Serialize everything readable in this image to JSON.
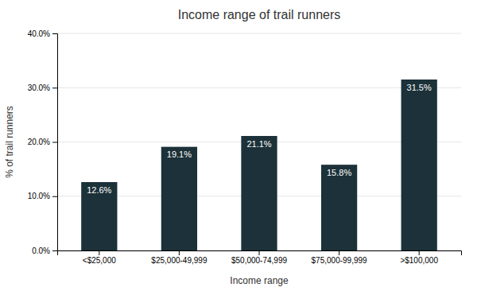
{
  "chart_data": {
    "type": "bar",
    "title": "Income range of trail runners",
    "xlabel": "Income range",
    "ylabel": "% of trail runners",
    "categories": [
      "<$25,000",
      "$25,000-49,999",
      "$50,000-74,999",
      "$75,000-99,999",
      ">$100,000"
    ],
    "values": [
      12.6,
      19.1,
      21.1,
      15.8,
      31.5
    ],
    "value_labels": [
      "12.6%",
      "19.1%",
      "21.1%",
      "15.8%",
      "31.5%"
    ],
    "data_labels": true,
    "color": "#1c3139",
    "ylim": [
      0,
      40
    ],
    "yticks": [
      {
        "value": 0,
        "label": "0.0%"
      },
      {
        "value": 10,
        "label": "10.0%"
      },
      {
        "value": 20,
        "label": "20.0%"
      },
      {
        "value": 30,
        "label": "30.0%"
      },
      {
        "value": 40,
        "label": "40.0%"
      }
    ],
    "grid": true
  }
}
